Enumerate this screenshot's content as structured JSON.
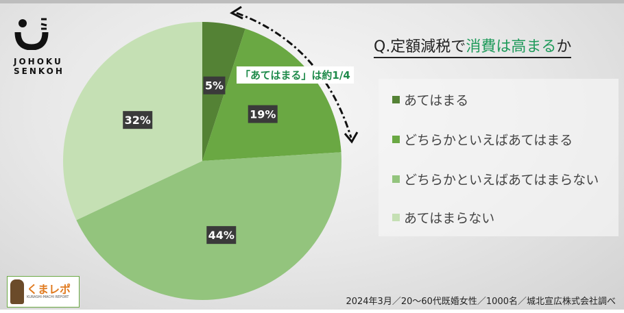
{
  "logo": {
    "brand": "JOHOKU SENKOH",
    "line1": "JOHOKU",
    "line2": "SENKOH"
  },
  "title": {
    "prefix": "Q.定額減税で",
    "highlight": "消費は高まる",
    "suffix": "か"
  },
  "annotation": "「あてはまる」は約1/4",
  "footer": "2024年3月／20～60代既婚女性／1000名／城北宣広株式会社調べ",
  "badge": {
    "title": "くまレポ",
    "subtitle": "KURASHI-MACHI REPORT"
  },
  "chart_data": {
    "type": "pie",
    "title": "Q.定額減税で消費は高まるか",
    "categories": [
      "あてはまる",
      "どちらかといえばあてはまる",
      "どちらかといえばあてはまらない",
      "あてはまらない"
    ],
    "values": [
      5,
      19,
      44,
      32
    ],
    "labels": [
      "5%",
      "19%",
      "44%",
      "32%"
    ],
    "colors": [
      "#548235",
      "#6aa843",
      "#93c47d",
      "#c5e0b4"
    ],
    "start": "top",
    "direction": "clockwise",
    "legend": "right"
  }
}
